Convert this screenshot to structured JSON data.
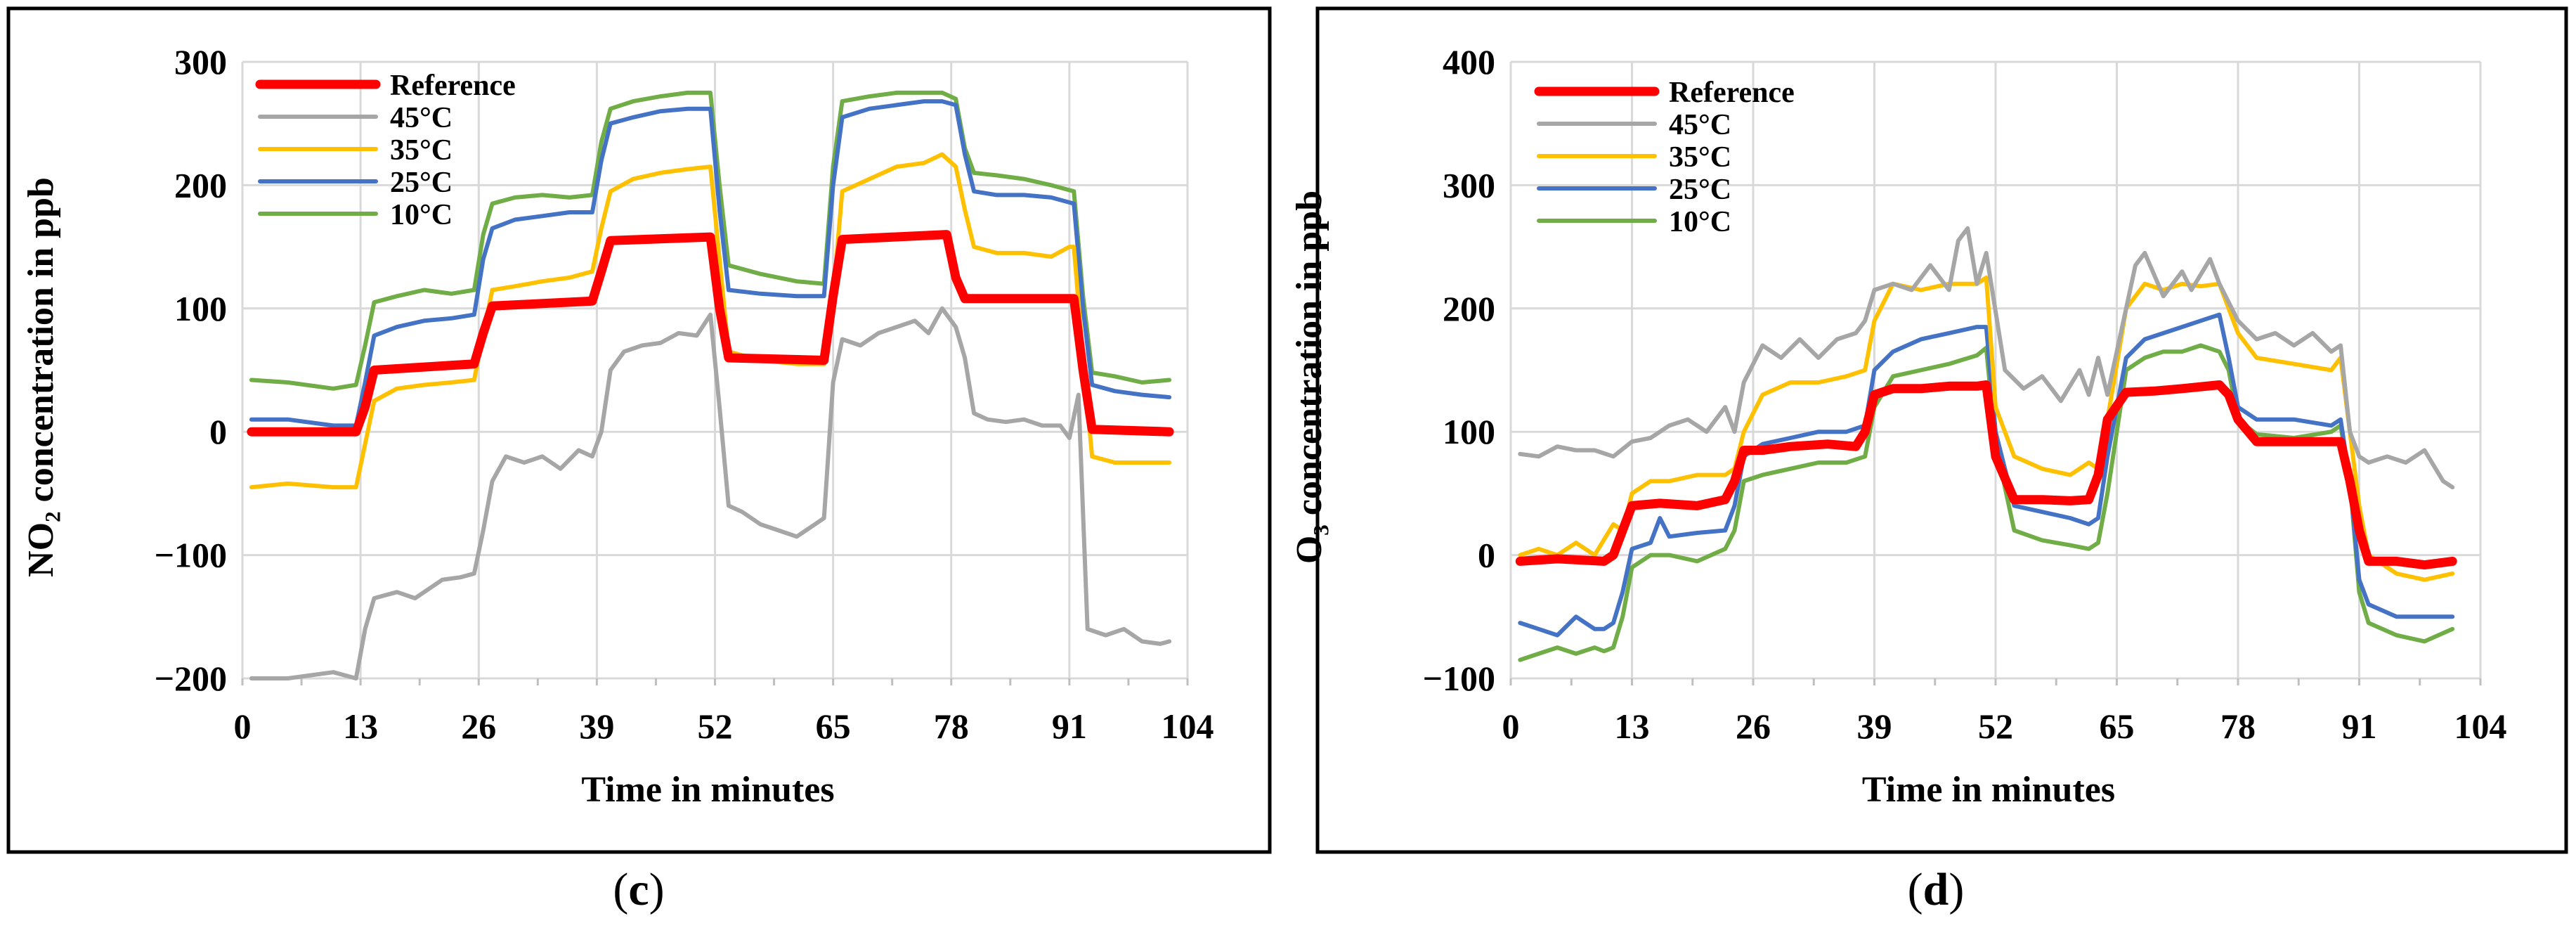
{
  "chart_data": [
    {
      "type": "line",
      "panel": "c",
      "title": "",
      "ylabel": "NO₂ concentration in ppb",
      "xlabel": "Time in minutes",
      "xlim": [
        0,
        104
      ],
      "ylim": [
        -200,
        300
      ],
      "xticks": [
        0,
        13,
        26,
        39,
        52,
        65,
        78,
        91,
        104
      ],
      "yticks": [
        -200,
        -100,
        0,
        100,
        200,
        300
      ],
      "grid": true,
      "legend_position": "top-left",
      "series": [
        {
          "name": "Reference",
          "color": "#ff0000",
          "x": [
            1,
            12.5,
            13.5,
            14.5,
            25.5,
            26.5,
            27.5,
            38.5,
            39.5,
            40.5,
            51.5,
            52.5,
            53.5,
            64,
            65,
            66,
            77.5,
            78.5,
            79.5,
            91.5,
            92.5,
            93.5,
            102
          ],
          "y": [
            0,
            0,
            20,
            50,
            55,
            80,
            102,
            106,
            130,
            155,
            158,
            100,
            60,
            58,
            110,
            156,
            160,
            125,
            108,
            108,
            50,
            2,
            0
          ]
        },
        {
          "name": "45°C",
          "color": "#a6a6a6",
          "x": [
            1,
            5,
            10,
            12.5,
            13.5,
            14.5,
            17,
            19,
            22,
            24,
            25.5,
            26.5,
            27.5,
            29,
            31,
            33,
            35,
            37,
            38.5,
            39.5,
            40.5,
            42,
            44,
            46,
            48,
            50,
            51.5,
            52.5,
            53.5,
            55,
            57,
            59,
            61,
            63,
            64,
            65,
            66,
            68,
            70,
            72,
            74,
            75.5,
            77,
            78.5,
            79.5,
            80.5,
            82,
            84,
            86,
            88,
            90,
            91,
            92,
            93,
            95,
            97,
            99,
            101,
            102
          ],
          "y": [
            -200,
            -200,
            -195,
            -200,
            -160,
            -135,
            -130,
            -135,
            -120,
            -118,
            -115,
            -80,
            -40,
            -20,
            -25,
            -20,
            -30,
            -15,
            -20,
            0,
            50,
            65,
            70,
            72,
            80,
            78,
            95,
            20,
            -60,
            -65,
            -75,
            -80,
            -85,
            -75,
            -70,
            40,
            75,
            70,
            80,
            85,
            90,
            80,
            100,
            85,
            60,
            15,
            10,
            8,
            10,
            5,
            5,
            -5,
            30,
            -160,
            -165,
            -160,
            -170,
            -172,
            -170
          ]
        },
        {
          "name": "35°C",
          "color": "#ffc000",
          "x": [
            1,
            5,
            10,
            12.5,
            13.5,
            14.5,
            17,
            20,
            23,
            25.5,
            26.5,
            27.5,
            30,
            33,
            36,
            38.5,
            39.5,
            40.5,
            43,
            46,
            49,
            51.5,
            52.5,
            53.5,
            57,
            61,
            64,
            65,
            66,
            69,
            72,
            75,
            77,
            78.5,
            79.5,
            80.5,
            83,
            86,
            89,
            91,
            91.5,
            92.5,
            93.5,
            96,
            99,
            102
          ],
          "y": [
            -45,
            -42,
            -45,
            -45,
            -10,
            25,
            35,
            38,
            40,
            42,
            80,
            115,
            118,
            122,
            125,
            130,
            165,
            195,
            205,
            210,
            213,
            215,
            140,
            65,
            58,
            55,
            55,
            110,
            195,
            205,
            215,
            218,
            225,
            215,
            180,
            150,
            145,
            145,
            142,
            150,
            150,
            60,
            -20,
            -25,
            -25,
            -25
          ]
        },
        {
          "name": "25°C",
          "color": "#4472c4",
          "x": [
            1,
            5,
            10,
            12.5,
            13.5,
            14.5,
            17,
            20,
            23,
            25.5,
            26.5,
            27.5,
            30,
            33,
            36,
            38.5,
            39.5,
            40.5,
            43,
            46,
            49,
            51.5,
            52.5,
            53.5,
            57,
            61,
            64,
            65,
            66,
            69,
            72,
            75,
            77,
            78.5,
            79.5,
            80.5,
            83,
            86,
            89,
            91.5,
            92.5,
            93.5,
            96,
            99,
            102
          ],
          "y": [
            10,
            10,
            5,
            5,
            40,
            78,
            85,
            90,
            92,
            95,
            140,
            165,
            172,
            175,
            178,
            178,
            220,
            250,
            255,
            260,
            262,
            262,
            180,
            115,
            112,
            110,
            110,
            200,
            255,
            262,
            265,
            268,
            268,
            265,
            225,
            195,
            192,
            192,
            190,
            185,
            100,
            38,
            33,
            30,
            28
          ]
        },
        {
          "name": "10°C",
          "color": "#70ad47",
          "x": [
            1,
            5,
            10,
            12.5,
            13.5,
            14.5,
            17,
            20,
            23,
            25.5,
            26.5,
            27.5,
            30,
            33,
            36,
            38.5,
            39.5,
            40.5,
            43,
            46,
            49,
            51.5,
            52.5,
            53.5,
            57,
            61,
            64,
            65,
            66,
            69,
            72,
            75,
            77,
            78.5,
            79.5,
            80.5,
            83,
            86,
            89,
            91.5,
            92.5,
            93.5,
            96,
            99,
            102
          ],
          "y": [
            42,
            40,
            35,
            38,
            70,
            105,
            110,
            115,
            112,
            115,
            160,
            185,
            190,
            192,
            190,
            192,
            235,
            262,
            268,
            272,
            275,
            275,
            200,
            135,
            128,
            122,
            120,
            215,
            268,
            272,
            275,
            275,
            275,
            270,
            230,
            210,
            208,
            205,
            200,
            195,
            110,
            48,
            45,
            40,
            42
          ]
        }
      ]
    },
    {
      "type": "line",
      "panel": "d",
      "title": "",
      "ylabel": "O₃ concentration in ppb",
      "xlabel": "Time in minutes",
      "xlim": [
        0,
        104
      ],
      "ylim": [
        -100,
        400
      ],
      "xticks": [
        0,
        13,
        26,
        39,
        52,
        65,
        78,
        91,
        104
      ],
      "yticks": [
        -100,
        0,
        100,
        200,
        300,
        400
      ],
      "grid": true,
      "legend_position": "top-left",
      "series": [
        {
          "name": "Reference",
          "color": "#ff0000",
          "x": [
            1,
            5,
            10,
            11,
            12,
            13,
            16,
            20,
            23,
            24,
            25,
            27,
            30,
            34,
            37,
            38,
            39,
            41,
            44,
            47,
            50,
            51,
            52,
            54,
            57,
            60,
            62,
            63,
            64,
            66,
            69,
            72,
            76,
            77,
            78,
            80,
            84,
            88,
            89,
            90,
            91,
            92,
            95,
            98,
            101
          ],
          "y": [
            -5,
            -3,
            -5,
            0,
            20,
            40,
            42,
            40,
            45,
            60,
            85,
            85,
            88,
            90,
            88,
            100,
            130,
            135,
            135,
            137,
            137,
            138,
            80,
            45,
            45,
            44,
            45,
            65,
            110,
            132,
            133,
            135,
            138,
            130,
            110,
            92,
            92,
            92,
            92,
            60,
            20,
            -5,
            -5,
            -8,
            -5
          ]
        },
        {
          "name": "45°C",
          "color": "#a6a6a6",
          "x": [
            1,
            3,
            5,
            7,
            9,
            11,
            13,
            15,
            17,
            19,
            21,
            23,
            24,
            25,
            27,
            29,
            31,
            33,
            35,
            37,
            38,
            39,
            41,
            43,
            45,
            47,
            48,
            49,
            50,
            51,
            53,
            55,
            57,
            59,
            61,
            62,
            63,
            64,
            66,
            67,
            68,
            70,
            72,
            73,
            75,
            76,
            78,
            80,
            82,
            84,
            86,
            88,
            89,
            90,
            91,
            92,
            94,
            96,
            98,
            100,
            101
          ],
          "y": [
            82,
            80,
            88,
            85,
            85,
            80,
            92,
            95,
            105,
            110,
            100,
            120,
            100,
            140,
            170,
            160,
            175,
            160,
            175,
            180,
            190,
            215,
            220,
            215,
            235,
            215,
            255,
            265,
            220,
            245,
            150,
            135,
            145,
            125,
            150,
            130,
            160,
            130,
            200,
            235,
            245,
            210,
            230,
            215,
            240,
            220,
            190,
            175,
            180,
            170,
            180,
            165,
            170,
            100,
            80,
            75,
            80,
            75,
            85,
            60,
            55
          ]
        },
        {
          "name": "35°C",
          "color": "#ffc000",
          "x": [
            1,
            3,
            5,
            7,
            9,
            11,
            12,
            13,
            15,
            17,
            20,
            23,
            24,
            25,
            27,
            30,
            33,
            36,
            38,
            39,
            41,
            44,
            47,
            50,
            51,
            52,
            54,
            57,
            60,
            62,
            63,
            64,
            66,
            68,
            70,
            72,
            74,
            76,
            77,
            78,
            80,
            84,
            88,
            89,
            90,
            91,
            92,
            95,
            98,
            101
          ],
          "y": [
            0,
            5,
            0,
            10,
            0,
            25,
            20,
            50,
            60,
            60,
            65,
            65,
            70,
            100,
            130,
            140,
            140,
            145,
            150,
            190,
            220,
            215,
            220,
            220,
            225,
            120,
            80,
            70,
            65,
            75,
            70,
            110,
            200,
            220,
            215,
            220,
            218,
            220,
            200,
            180,
            160,
            155,
            150,
            160,
            100,
            40,
            0,
            -15,
            -20,
            -15
          ]
        },
        {
          "name": "25°C",
          "color": "#4472c4",
          "x": [
            1,
            3,
            5,
            7,
            9,
            10,
            11,
            12,
            13,
            15,
            16,
            17,
            20,
            23,
            24,
            25,
            27,
            30,
            33,
            36,
            38,
            39,
            41,
            44,
            47,
            50,
            51,
            52,
            54,
            57,
            60,
            62,
            63,
            64,
            66,
            68,
            70,
            72,
            74,
            76,
            77,
            78,
            80,
            84,
            88,
            89,
            90,
            91,
            92,
            95,
            98,
            101
          ],
          "y": [
            -55,
            -60,
            -65,
            -50,
            -60,
            -60,
            -55,
            -30,
            5,
            10,
            30,
            15,
            18,
            20,
            40,
            80,
            90,
            95,
            100,
            100,
            105,
            150,
            165,
            175,
            180,
            185,
            185,
            100,
            40,
            35,
            30,
            25,
            30,
            80,
            160,
            175,
            180,
            185,
            190,
            195,
            160,
            120,
            110,
            110,
            105,
            110,
            60,
            -20,
            -40,
            -50,
            -50,
            -50
          ]
        },
        {
          "name": "10°C",
          "color": "#70ad47",
          "x": [
            1,
            3,
            5,
            7,
            9,
            10,
            11,
            12,
            13,
            15,
            17,
            20,
            23,
            24,
            25,
            27,
            30,
            33,
            36,
            38,
            39,
            41,
            44,
            47,
            50,
            51,
            52,
            54,
            57,
            60,
            62,
            63,
            64,
            66,
            68,
            70,
            72,
            74,
            76,
            77,
            78,
            80,
            84,
            88,
            89,
            90,
            91,
            92,
            95,
            98,
            101
          ],
          "y": [
            -85,
            -80,
            -75,
            -80,
            -75,
            -78,
            -75,
            -50,
            -10,
            0,
            0,
            -5,
            5,
            20,
            60,
            65,
            70,
            75,
            75,
            80,
            120,
            145,
            150,
            155,
            162,
            168,
            90,
            20,
            12,
            8,
            5,
            10,
            50,
            150,
            160,
            165,
            165,
            170,
            165,
            150,
            110,
            98,
            95,
            100,
            105,
            60,
            -30,
            -55,
            -65,
            -70,
            -60
          ]
        }
      ]
    }
  ],
  "captions": [
    "c",
    "d"
  ]
}
